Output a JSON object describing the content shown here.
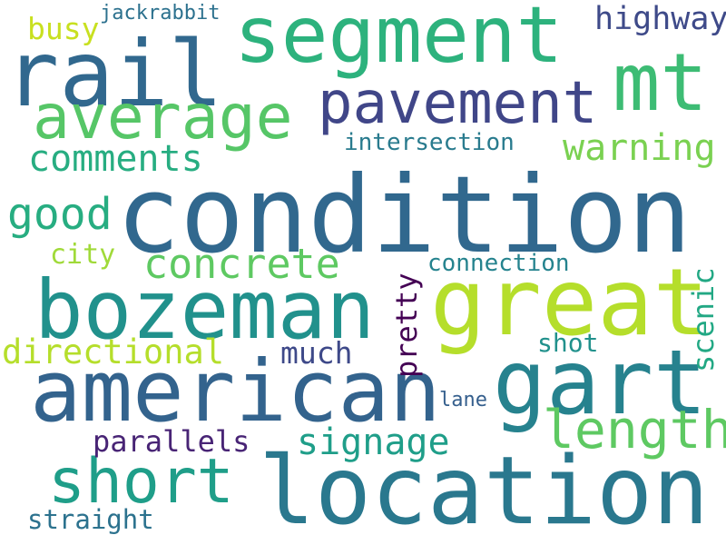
{
  "words": {
    "condition": {
      "text": "condition",
      "color": "#31688e"
    },
    "location": {
      "text": "location",
      "color": "#2a788e"
    },
    "american": {
      "text": "american",
      "color": "#33638d"
    },
    "great": {
      "text": "great",
      "color": "#b5de2b"
    },
    "bozeman": {
      "text": "bozeman",
      "color": "#21918c"
    },
    "segment": {
      "text": "segment",
      "color": "#2db27d"
    },
    "rail": {
      "text": "rail",
      "color": "#31688e"
    },
    "gart": {
      "text": "gart",
      "color": "#26828e"
    },
    "mt": {
      "text": "mt",
      "color": "#3dbc74"
    },
    "average": {
      "text": "average",
      "color": "#56c667"
    },
    "pavement": {
      "text": "pavement",
      "color": "#404688"
    },
    "short": {
      "text": "short",
      "color": "#1f9e89"
    },
    "length": {
      "text": "length",
      "color": "#5ec962"
    },
    "concrete": {
      "text": "concrete",
      "color": "#5ec962"
    },
    "good": {
      "text": "good",
      "color": "#27ad81"
    },
    "directional": {
      "text": "directional",
      "color": "#b5de2b"
    },
    "signage": {
      "text": "signage",
      "color": "#1f9e89"
    },
    "comments": {
      "text": "comments",
      "color": "#27ad81"
    },
    "warning": {
      "text": "warning",
      "color": "#7ad151"
    },
    "highway": {
      "text": "highway",
      "color": "#3e4a89"
    },
    "scenic": {
      "text": "scenic",
      "color": "#22a884"
    },
    "pretty": {
      "text": "pretty",
      "color": "#440154"
    },
    "much": {
      "text": "much",
      "color": "#3e4989"
    },
    "parallels": {
      "text": "parallels",
      "color": "#482475"
    },
    "straight": {
      "text": "straight",
      "color": "#2c728e"
    },
    "intersection": {
      "text": "intersection",
      "color": "#297b8e"
    },
    "connection": {
      "text": "connection",
      "color": "#25838e"
    },
    "shot": {
      "text": "shot",
      "color": "#21918c"
    },
    "city": {
      "text": "city",
      "color": "#a0da39"
    },
    "busy": {
      "text": "busy",
      "color": "#c8e020"
    },
    "jackrabbit": {
      "text": "jackrabbit",
      "color": "#2c718e"
    },
    "lane": {
      "text": "lane",
      "color": "#355f8d"
    }
  }
}
